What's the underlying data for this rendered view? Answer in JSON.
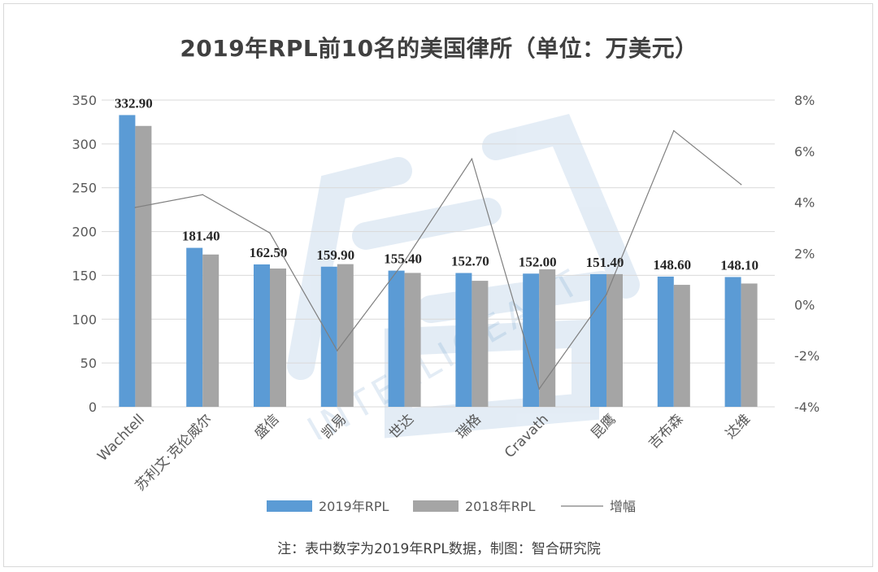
{
  "title": "2019年RPL前10名的美国律所（单位：万美元）",
  "footnote": "注：表中数字为2019年RPL数据，制图：智合研究院",
  "watermark": {
    "text": "INTELLIGEAST",
    "logo": "智合"
  },
  "colors": {
    "rpl2019": "#5b9bd5",
    "rpl2018": "#a5a5a5",
    "growth": "#7f7f7f",
    "grid": "#d9d9d9",
    "text": "#595959"
  },
  "chart_data": {
    "type": "bar",
    "categories": [
      "Wachtell",
      "苏利文·克伦威尔",
      "盛信",
      "凯易",
      "世达",
      "瑞格",
      "Cravath",
      "昆鹰",
      "吉布森",
      "达维"
    ],
    "series": [
      {
        "name": "2019年RPL",
        "type": "bar",
        "axis": "left",
        "values": [
          332.9,
          181.4,
          162.5,
          159.9,
          155.4,
          152.7,
          152.0,
          151.4,
          148.6,
          148.1
        ],
        "labels": [
          "332.90",
          "181.40",
          "162.50",
          "159.90",
          "155.40",
          "152.70",
          "152.00",
          "151.40",
          "148.60",
          "148.10"
        ]
      },
      {
        "name": "2018年RPL",
        "type": "bar",
        "axis": "left",
        "values": [
          320.5,
          173.8,
          157.8,
          162.8,
          152.8,
          143.8,
          156.9,
          151.4,
          139.2,
          140.7
        ]
      },
      {
        "name": "增幅",
        "type": "line",
        "axis": "right",
        "values": [
          3.8,
          4.3,
          2.8,
          -1.8,
          1.7,
          5.7,
          -3.3,
          0.4,
          6.8,
          4.7
        ]
      }
    ],
    "y_left": {
      "min": 0,
      "max": 350,
      "ticks": [
        "0",
        "50",
        "100",
        "150",
        "200",
        "250",
        "300",
        "350"
      ]
    },
    "y_right": {
      "min": -4,
      "max": 8,
      "ticks": [
        "-4%",
        "-2%",
        "0%",
        "2%",
        "4%",
        "6%",
        "8%"
      ]
    },
    "grid": true,
    "legend_position": "bottom"
  }
}
